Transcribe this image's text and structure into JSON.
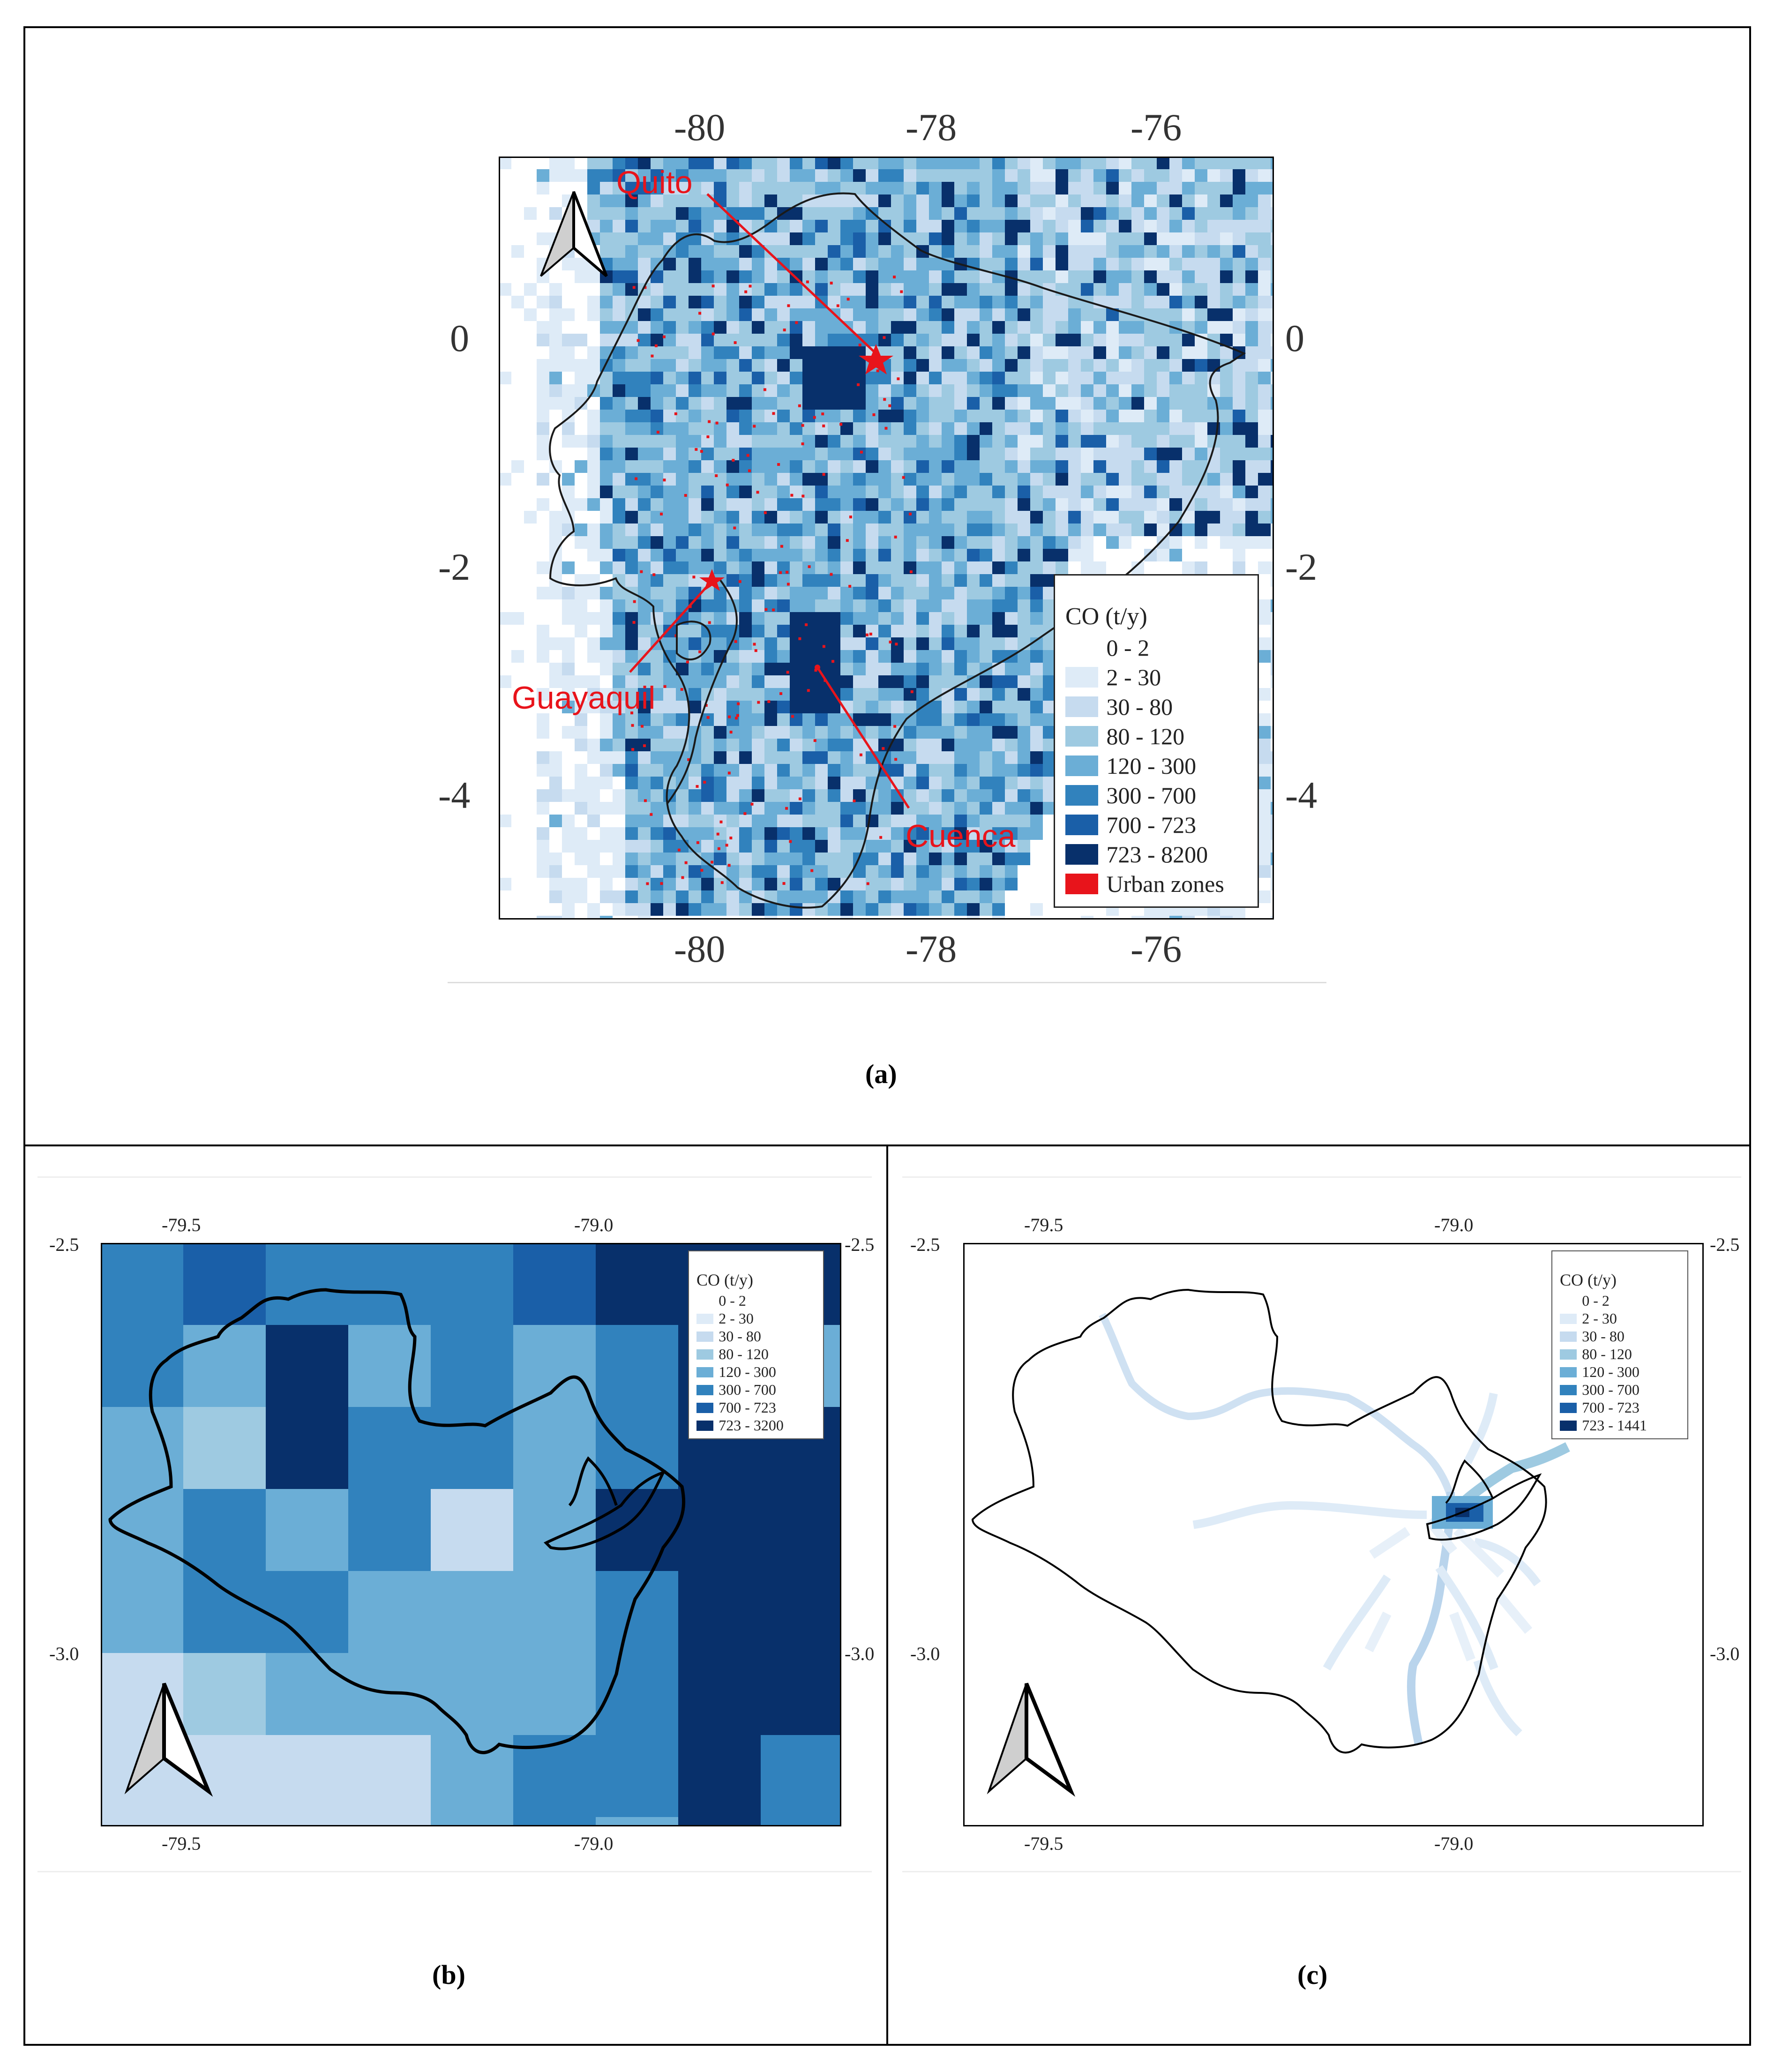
{
  "panel_a": {
    "label": "(a)",
    "x_ticks": [
      "-80",
      "-78",
      "-76"
    ],
    "y_ticks": [
      "0",
      "-2",
      "-4"
    ],
    "cities": [
      "Quito",
      "Guayaquil",
      "Cuenca"
    ],
    "legend": {
      "title": "CO (t/y)",
      "items": [
        {
          "label": "0 - 2",
          "color": "#ffffff"
        },
        {
          "label": "2 - 30",
          "color": "#deebf7"
        },
        {
          "label": "30 - 80",
          "color": "#c6dbef"
        },
        {
          "label": "80 - 120",
          "color": "#9ecae1"
        },
        {
          "label": "120 - 300",
          "color": "#6baed6"
        },
        {
          "label": "300 - 700",
          "color": "#3182bd"
        },
        {
          "label": "700 - 723",
          "color": "#1a5fa8"
        },
        {
          "label": "723 - 8200",
          "color": "#08306b"
        },
        {
          "label": "Urban zones",
          "color": "#e8141b"
        }
      ]
    }
  },
  "panel_b": {
    "label": "(b)",
    "x_ticks": [
      "-79.5",
      "-79.0"
    ],
    "y_ticks": [
      "-2.5",
      "-3.0"
    ],
    "y_ticks_right": [
      "-2.5",
      "-3.0"
    ],
    "legend": {
      "title": "CO (t/y)",
      "items": [
        {
          "label": "0 - 2",
          "color": "#ffffff"
        },
        {
          "label": "2 - 30",
          "color": "#deebf7"
        },
        {
          "label": "30 - 80",
          "color": "#c6dbef"
        },
        {
          "label": "80 - 120",
          "color": "#9ecae1"
        },
        {
          "label": "120 - 300",
          "color": "#6baed6"
        },
        {
          "label": "300 - 700",
          "color": "#3182bd"
        },
        {
          "label": "700 - 723",
          "color": "#1a5fa8"
        },
        {
          "label": "723 - 3200",
          "color": "#08306b"
        }
      ]
    },
    "grid_classes": [
      [
        5,
        6,
        5,
        5,
        5,
        6,
        7,
        7,
        7
      ],
      [
        5,
        4,
        7,
        4,
        5,
        4,
        5,
        7,
        4
      ],
      [
        4,
        3,
        7,
        5,
        5,
        4,
        5,
        7,
        7
      ],
      [
        4,
        5,
        4,
        5,
        2,
        4,
        7,
        7,
        7
      ],
      [
        4,
        5,
        5,
        4,
        4,
        4,
        5,
        7,
        7
      ],
      [
        2,
        3,
        4,
        4,
        4,
        4,
        5,
        7,
        7
      ],
      [
        2,
        2,
        2,
        2,
        4,
        5,
        5,
        7,
        5
      ],
      [
        2,
        2,
        2,
        2,
        4,
        5,
        4,
        7,
        5
      ]
    ]
  },
  "panel_c": {
    "label": "(c)",
    "x_ticks": [
      "-79.5",
      "-79.0"
    ],
    "y_ticks": [
      "-2.5",
      "-3.0"
    ],
    "y_ticks_right": [
      "-2.5",
      "-3.0"
    ],
    "legend": {
      "title": "CO (t/y)",
      "items": [
        {
          "label": "0 - 2",
          "color": "#ffffff"
        },
        {
          "label": "2 - 30",
          "color": "#deebf7"
        },
        {
          "label": "30 - 80",
          "color": "#c6dbef"
        },
        {
          "label": "80 - 120",
          "color": "#9ecae1"
        },
        {
          "label": "120 - 300",
          "color": "#6baed6"
        },
        {
          "label": "300 - 700",
          "color": "#3182bd"
        },
        {
          "label": "700 - 723",
          "color": "#1a5fa8"
        },
        {
          "label": "723 - 1441",
          "color": "#08306b"
        }
      ]
    }
  }
}
